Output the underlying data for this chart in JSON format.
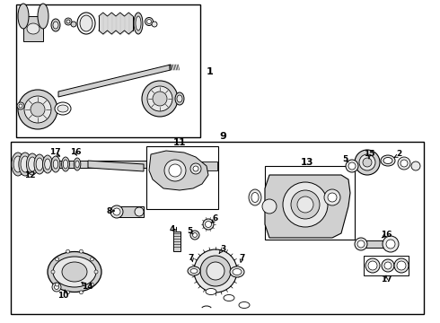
{
  "bg_color": "#ffffff",
  "fig_width": 4.9,
  "fig_height": 3.6,
  "dpi": 100,
  "lc": "#000000",
  "fc_light": "#e8e8e8",
  "fc_mid": "#d0d0d0",
  "fc_dark": "#b8b8b8"
}
